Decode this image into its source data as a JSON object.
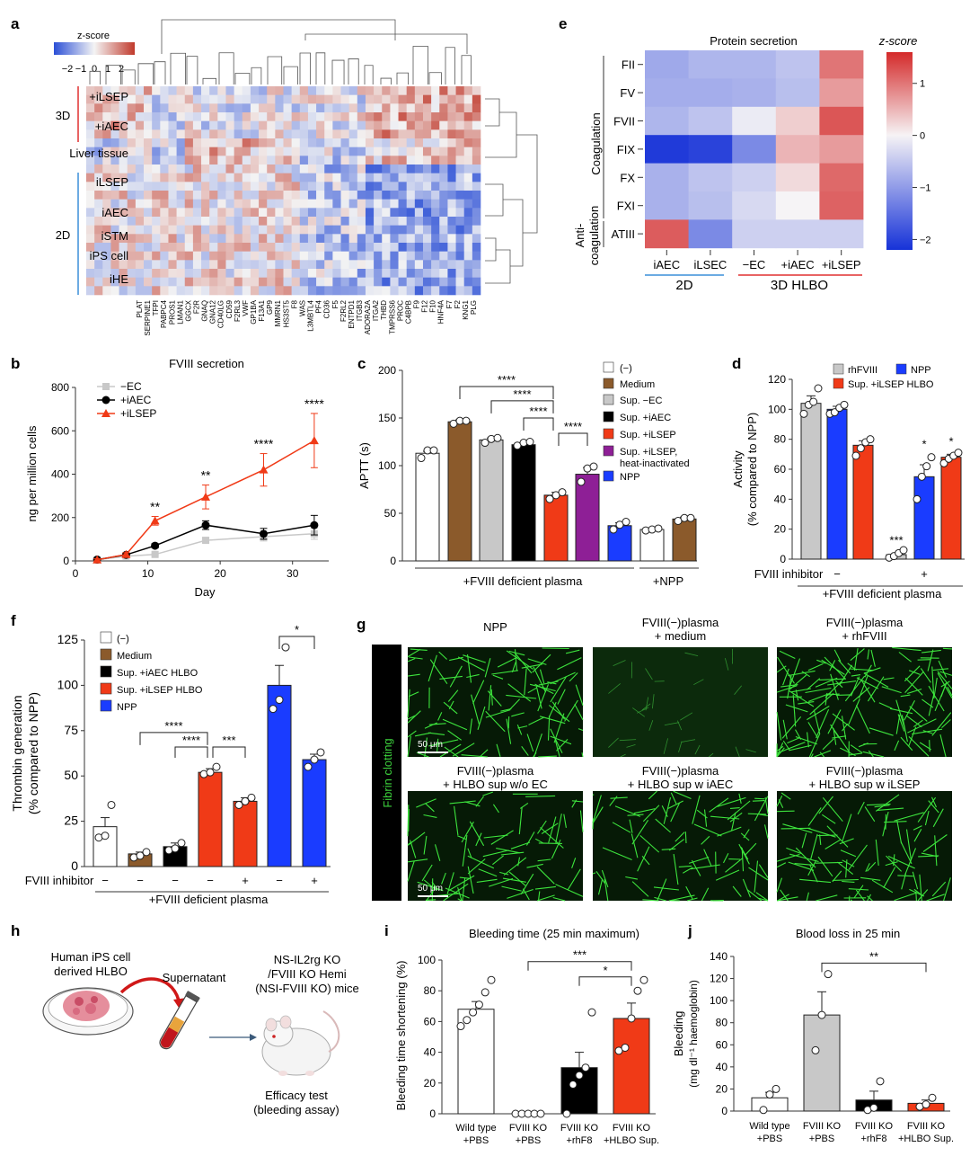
{
  "panels": {
    "a": {
      "label": "a",
      "zscore_title": "z-score",
      "zscore_ticks": [
        "−2",
        "−1",
        "0",
        "1",
        "2"
      ],
      "group_labels": [
        "3D",
        "2D"
      ],
      "row_labels": [
        "+iLSEP",
        "+iAEC",
        "Liver tissue",
        "iLSEP",
        "iAEC",
        "iSTM",
        "iPS cell",
        "iHE"
      ],
      "genes": [
        "PLAT",
        "SERPINE1",
        "TFPI",
        "PABPC4",
        "PROS1",
        "LMAN1",
        "GGCX",
        "F2R",
        "GNAQ",
        "GNA12",
        "CD40LG",
        "CD59",
        "F2RL3",
        "VWF",
        "GP1BA",
        "F13A1",
        "GP9",
        "MMRN1",
        "HS3ST5",
        "F8",
        "WAS",
        "L3MBTL4",
        "PF4",
        "CD36",
        "F5",
        "F2RL2",
        "ENTPD1",
        "ITGB3",
        "ADORA2A",
        "ITGA2",
        "THBD",
        "TMPRSS6",
        "PROC",
        "C4BPB",
        "F9",
        "F12",
        "F10",
        "HNF4A",
        "F7",
        "F2",
        "KNG1",
        "PLG"
      ]
    },
    "e": {
      "label": "e",
      "title": "Protein secretion",
      "zscore_title": "z-score",
      "colorbar_ticks": [
        "1",
        "0",
        "−1",
        "−2"
      ],
      "rows": [
        "FII",
        "FV",
        "FVII",
        "FIX",
        "FX",
        "FXI",
        "ATIII"
      ],
      "cols": [
        "iAEC",
        "iLSEC",
        "−EC",
        "+iAEC",
        "+iLSEP"
      ],
      "group_coag": "Coagulation",
      "group_anti": [
        "Anti-",
        "coagulation"
      ],
      "group_2d": "2D",
      "group_3d": "3D HLBO",
      "matrix": [
        [
          -0.85,
          -0.7,
          -0.7,
          -0.55,
          1.0
        ],
        [
          -0.8,
          -0.8,
          -0.75,
          -0.6,
          0.7
        ],
        [
          -0.7,
          -0.55,
          -0.1,
          0.3,
          1.25
        ],
        [
          -2.1,
          -2.0,
          -1.2,
          0.5,
          0.7
        ],
        [
          -0.75,
          -0.55,
          -0.4,
          0.2,
          1.1
        ],
        [
          -0.75,
          -0.6,
          -0.3,
          0.0,
          1.15
        ],
        [
          1.2,
          -1.2,
          -0.4,
          -0.4,
          -0.4
        ]
      ]
    },
    "b": {
      "label": "b",
      "title": "FVIII secretion",
      "xlabel": "Day",
      "ylabel": "ng per million cells",
      "legend": [
        "−EC",
        "+iAEC",
        "+iLSEP"
      ],
      "sig": [
        "**",
        "**",
        "****",
        "****"
      ]
    },
    "c": {
      "label": "c",
      "ylabel": "APTT (s)",
      "legend": [
        "(−)",
        "Medium",
        "Sup. −EC",
        "Sup. +iAEC",
        "Sup. +iLSEP",
        "Sup. +iLSEP,",
        "heat-inactivated",
        "NPP"
      ],
      "xgroup1": "+FVIII deficient plasma",
      "xgroup2": "+NPP",
      "sig": [
        "****",
        "****",
        "****",
        "****"
      ]
    },
    "d": {
      "label": "d",
      "ylabel1": "Activity",
      "ylabel2": "(% compared to NPP)",
      "legend": [
        "rhFVIII",
        "NPP",
        "Sup. +iLSEP HLBO"
      ],
      "inhibitor_label": "FVIII inhibitor",
      "inhibitor_marks": [
        "−",
        "+"
      ],
      "xgroup": "+FVIII deficient plasma",
      "sig": [
        "***",
        "*",
        "*"
      ]
    },
    "f": {
      "label": "f",
      "ylabel1": "Thrombin generation",
      "ylabel2": "(% compared to NPP)",
      "legend": [
        "(−)",
        "Medium",
        "Sup. +iAEC HLBO",
        "Sup. +iLSEP HLBO",
        "NPP"
      ],
      "inhibitor_label": "FVIII inhibitor",
      "inhibitor_marks": [
        "−",
        "−",
        "−",
        "−",
        "+",
        "−",
        "+"
      ],
      "xgroup": "+FVIII deficient plasma",
      "sig": [
        "****",
        "****",
        "***",
        "*"
      ]
    },
    "g": {
      "label": "g",
      "side_label": "Fibrin clotting",
      "titles": [
        [
          "NPP",
          ""
        ],
        [
          "FVIII(−)plasma",
          "+ medium"
        ],
        [
          "FVIII(−)plasma",
          "+ rhFVIII"
        ],
        [
          "FVIII(−)plasma",
          "+ HLBO sup w/o EC"
        ],
        [
          "FVIII(−)plasma",
          "+ HLBO sup w iAEC"
        ],
        [
          "FVIII(−)plasma",
          "+ HLBO sup w iLSEP"
        ]
      ],
      "scalebar": "50 μm"
    },
    "h": {
      "label": "h",
      "text1": [
        "Human iPS cell",
        "derived HLBO"
      ],
      "text2": "Supernatant",
      "text3": [
        "NS-IL2rg KO",
        "/FVIII KO Hemi",
        "(NSI-FVIII KO) mice"
      ],
      "text4": [
        "Efficacy test",
        "(bleeding assay)"
      ]
    },
    "i": {
      "label": "i",
      "title": "Bleeding time (25 min maximum)",
      "ylabel": "Bleeding time shortening (%)",
      "xlabels": [
        [
          "Wild type",
          "+PBS"
        ],
        [
          "FVIII KO",
          "+PBS"
        ],
        [
          "FVIII KO",
          "+rhF8"
        ],
        [
          "FVIII KO",
          "+HLBO Sup."
        ]
      ],
      "sig": [
        "***",
        "*"
      ]
    },
    "j": {
      "label": "j",
      "title": "Blood loss in 25 min",
      "ylabel1": "Bleeding",
      "ylabel2": "(mg dl⁻¹ haemoglobin)",
      "xlabels": [
        [
          "Wild type",
          "+PBS"
        ],
        [
          "FVIII KO",
          "+PBS"
        ],
        [
          "FVIII KO",
          "+rhF8"
        ],
        [
          "FVIII KO",
          "+HLBO Sup."
        ]
      ],
      "sig": [
        "**"
      ]
    }
  },
  "colors": {
    "red": "#f03a17",
    "blue": "#1a3cff",
    "brown": "#8b5a2b",
    "gray": "#c8c8c8",
    "purple": "#8e1f96",
    "black": "#000000",
    "white": "#ffffff"
  },
  "chart_data": [
    {
      "panel": "b",
      "type": "line",
      "x_unit": "Day",
      "xlim": [
        0,
        35
      ],
      "ylim": [
        0,
        800
      ],
      "xticks": [
        0,
        10,
        20,
        30
      ],
      "yticks": [
        0,
        200,
        400,
        600,
        800
      ],
      "series": [
        {
          "name": "−EC",
          "x": [
            3,
            7,
            11,
            18,
            26,
            33
          ],
          "y": [
            5,
            22,
            30,
            95,
            112,
            125
          ],
          "err": [
            5,
            5,
            5,
            10,
            20,
            25
          ]
        },
        {
          "name": "+iAEC",
          "x": [
            3,
            7,
            11,
            18,
            26,
            33
          ],
          "y": [
            6,
            28,
            70,
            165,
            125,
            165
          ],
          "err": [
            5,
            8,
            10,
            20,
            25,
            45
          ]
        },
        {
          "name": "+iLSEP",
          "x": [
            3,
            7,
            11,
            18,
            26,
            33
          ],
          "y": [
            5,
            30,
            185,
            295,
            420,
            555
          ],
          "err": [
            5,
            8,
            20,
            55,
            75,
            125
          ]
        }
      ]
    },
    {
      "panel": "c",
      "type": "bar",
      "ylim": [
        0,
        200
      ],
      "yticks": [
        0,
        50,
        100,
        150,
        200
      ],
      "categories": [
        "(−)",
        "Medium",
        "Sup. −EC",
        "Sup. +iAEC",
        "Sup. +iLSEP",
        "Sup. +iLSEP, heat-inactivated",
        "NPP",
        "(−) NPP",
        "Medium NPP"
      ],
      "values": [
        113,
        146,
        127,
        122,
        69,
        91,
        37,
        33,
        44
      ],
      "errors": [
        2,
        2,
        2,
        2,
        3,
        7,
        3,
        1,
        2
      ],
      "points": [
        [
          108,
          116,
          116
        ],
        [
          144,
          147,
          147
        ],
        [
          124,
          128,
          129
        ],
        [
          121,
          124,
          125
        ],
        [
          65,
          69,
          72
        ],
        [
          83,
          97,
          99
        ],
        [
          33,
          38,
          41
        ],
        [
          32,
          33,
          34
        ],
        [
          42,
          45,
          45
        ]
      ]
    },
    {
      "panel": "d",
      "type": "bar",
      "ylim": [
        0,
        120
      ],
      "yticks": [
        0,
        20,
        40,
        60,
        80,
        100,
        120
      ],
      "categories": [
        "rhFVIII −",
        "NPP −",
        "Sup. +iLSEP HLBO −",
        "rhFVIII +",
        "NPP +",
        "Sup. +iLSEP HLBO +"
      ],
      "values": [
        104,
        100,
        76,
        3,
        55,
        68
      ],
      "errors": [
        5,
        2,
        3,
        1,
        8,
        2
      ],
      "points": [
        [
          97,
          103,
          105,
          114
        ],
        [
          97,
          98,
          101,
          103
        ],
        [
          69,
          74,
          78,
          80
        ],
        [
          1,
          2,
          4,
          6
        ],
        [
          40,
          55,
          62,
          68
        ],
        [
          64,
          67,
          69,
          71
        ]
      ]
    },
    {
      "panel": "f",
      "type": "bar",
      "ylim": [
        0,
        125
      ],
      "yticks": [
        0,
        25,
        50,
        75,
        100,
        125
      ],
      "categories": [
        "(−) −",
        "Medium −",
        "Sup. +iAEC HLBO −",
        "Sup. +iLSEP HLBO −",
        "Sup. +iLSEP HLBO +",
        "NPP −",
        "NPP +"
      ],
      "values": [
        22,
        7,
        11,
        52,
        36,
        100,
        59
      ],
      "errors": [
        5,
        1,
        2,
        2,
        2,
        11,
        3
      ],
      "points": [
        [
          16,
          17,
          34
        ],
        [
          5,
          6,
          8
        ],
        [
          9,
          10,
          13
        ],
        [
          51,
          52,
          55
        ],
        [
          34,
          36,
          38
        ],
        [
          87,
          92,
          121
        ],
        [
          55,
          59,
          63
        ]
      ]
    },
    {
      "panel": "i",
      "type": "bar",
      "ylim": [
        0,
        100
      ],
      "yticks": [
        0,
        20,
        40,
        60,
        80,
        100
      ],
      "categories": [
        "Wild type +PBS",
        "FVIII KO +PBS",
        "FVIII KO +rhF8",
        "FVIII KO +HLBO Sup."
      ],
      "values": [
        68,
        0,
        30,
        62
      ],
      "errors": [
        5,
        0,
        10,
        10
      ],
      "points": [
        [
          57,
          61,
          66,
          71,
          79,
          87
        ],
        [
          0,
          0,
          0,
          0,
          0
        ],
        [
          0,
          19,
          25,
          30,
          66
        ],
        [
          41,
          43,
          62,
          80,
          87
        ]
      ]
    },
    {
      "panel": "j",
      "type": "bar",
      "ylim": [
        0,
        140
      ],
      "yticks": [
        0,
        20,
        40,
        60,
        80,
        100,
        120,
        140
      ],
      "categories": [
        "Wild type +PBS",
        "FVIII KO +PBS",
        "FVIII KO +rhF8",
        "FVIII KO +HLBO Sup."
      ],
      "values": [
        12,
        87,
        10,
        7
      ],
      "errors": [
        5,
        21,
        8,
        3
      ],
      "points": [
        [
          1,
          15,
          20
        ],
        [
          55,
          87,
          124
        ],
        [
          1,
          3,
          27
        ],
        [
          4,
          6,
          12
        ]
      ]
    },
    {
      "panel": "e",
      "type": "heatmap",
      "rows": [
        "FII",
        "FV",
        "FVII",
        "FIX",
        "FX",
        "FXI",
        "ATIII"
      ],
      "cols": [
        "iAEC",
        "iLSEC",
        "−EC",
        "+iAEC",
        "+iLSEP"
      ],
      "zlim": [
        -2.2,
        1.6
      ]
    },
    {
      "panel": "a",
      "type": "heatmap",
      "rows": [
        "+iLSEP",
        "+iAEC",
        "Liver tissue",
        "iLSEP",
        "iAEC",
        "iSTM",
        "iPS cell",
        "iHE"
      ],
      "zlim": [
        -2,
        2
      ]
    }
  ]
}
